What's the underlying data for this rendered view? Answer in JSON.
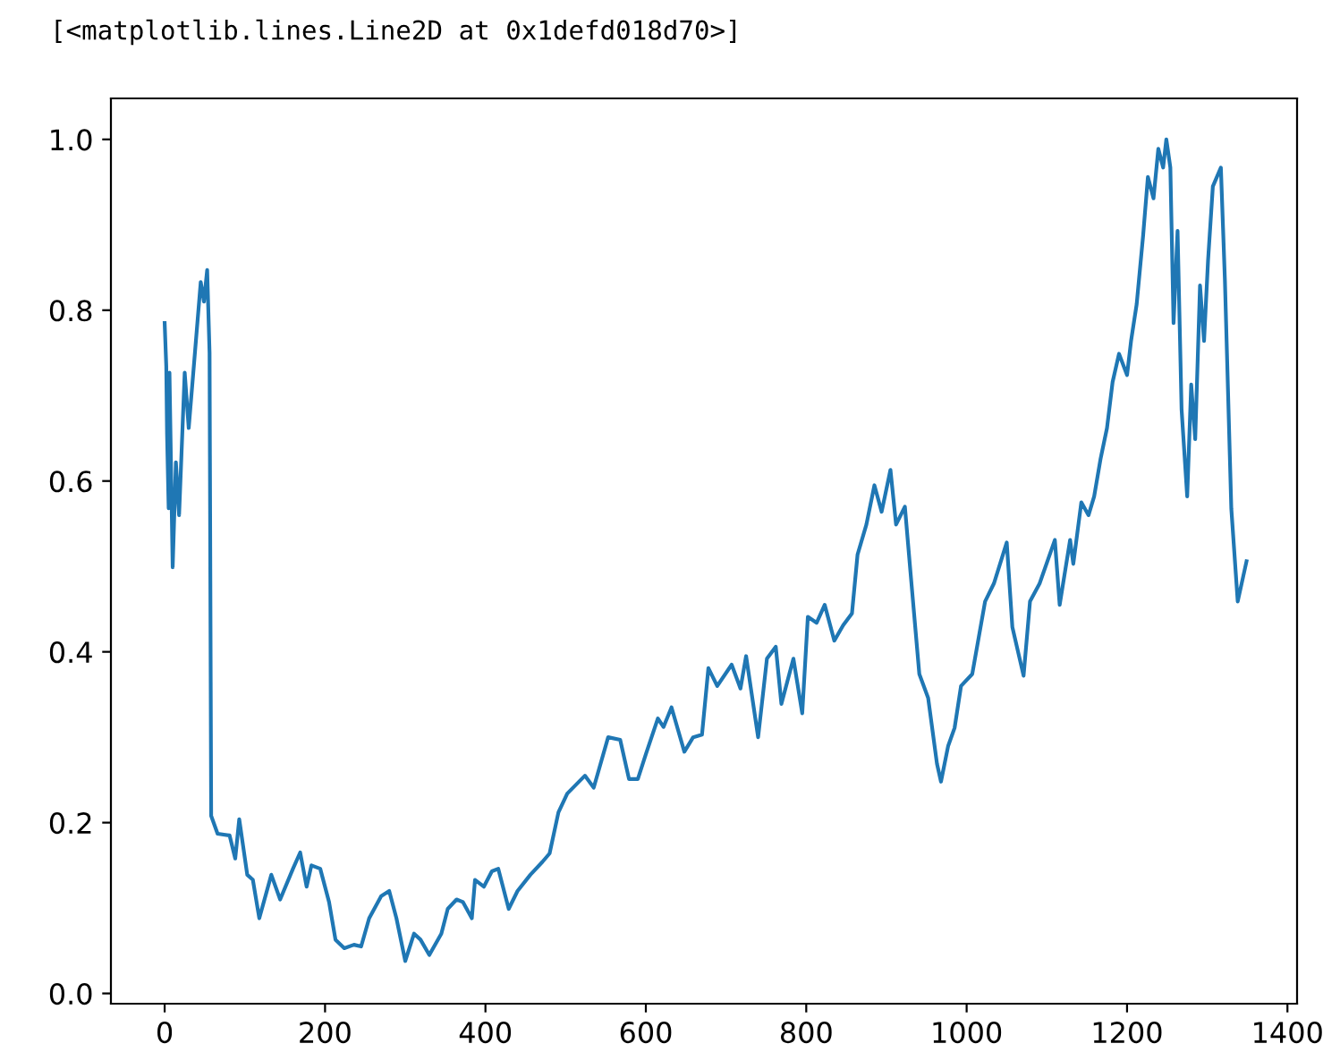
{
  "chart_data": {
    "type": "line",
    "annotations": [
      "[<matplotlib.lines.Line2D at 0x1defd018d70>]"
    ],
    "xlim": [
      -67,
      1412
    ],
    "ylim": [
      -0.012,
      1.048
    ],
    "xticks": [
      0,
      200,
      400,
      600,
      800,
      1000,
      1200,
      1400
    ],
    "yticks": [
      {
        "value": 0,
        "label": "0.0"
      },
      {
        "value": 0.2,
        "label": "0.2"
      },
      {
        "value": 0.4,
        "label": "0.4"
      },
      {
        "value": 0.6,
        "label": "0.6"
      },
      {
        "value": 0.8,
        "label": "0.8"
      },
      {
        "value": 1,
        "label": "1.0"
      }
    ],
    "grid": false,
    "marker": "none",
    "line_style": "solid",
    "series": [
      {
        "color": "#1f77b4",
        "x": [
          0,
          2,
          3,
          5,
          6,
          10,
          14,
          18,
          25,
          30,
          38,
          45,
          49,
          53,
          56,
          58,
          66,
          81,
          88,
          93,
          103,
          110,
          118,
          133,
          144,
          160,
          169,
          177,
          183,
          194,
          205,
          213,
          224,
          236,
          245,
          255,
          270,
          280,
          289,
          300,
          311,
          319,
          330,
          345,
          353,
          364,
          372,
          383,
          387,
          398,
          408,
          416,
          429,
          440,
          456,
          471,
          480,
          491,
          502,
          524,
          535,
          553,
          568,
          579,
          590,
          600,
          615,
          622,
          632,
          648,
          659,
          670,
          678,
          689,
          707,
          718,
          725,
          740,
          751,
          762,
          769,
          784,
          795,
          802,
          813,
          823,
          835,
          846,
          857,
          864,
          875,
          885,
          894,
          905,
          912,
          923,
          930,
          941,
          952,
          963,
          968,
          977,
          985,
          993,
          1007,
          1023,
          1034,
          1050,
          1057,
          1071,
          1079,
          1091,
          1110,
          1116,
          1129,
          1133,
          1143,
          1152,
          1159,
          1167,
          1175,
          1182,
          1190,
          1200,
          1205,
          1212,
          1220,
          1226,
          1233,
          1239,
          1245,
          1249,
          1254,
          1258,
          1263,
          1268,
          1275,
          1280,
          1285,
          1291,
          1296,
          1301,
          1307,
          1317,
          1322,
          1330,
          1338,
          1349
        ],
        "values": [
          0.785,
          0.735,
          0.655,
          0.568,
          0.727,
          0.499,
          0.622,
          0.56,
          0.727,
          0.662,
          0.753,
          0.833,
          0.81,
          0.847,
          0.75,
          0.208,
          0.187,
          0.185,
          0.158,
          0.204,
          0.139,
          0.133,
          0.088,
          0.139,
          0.11,
          0.146,
          0.165,
          0.125,
          0.15,
          0.146,
          0.107,
          0.063,
          0.053,
          0.057,
          0.055,
          0.088,
          0.114,
          0.12,
          0.088,
          0.038,
          0.07,
          0.063,
          0.045,
          0.07,
          0.099,
          0.11,
          0.107,
          0.088,
          0.133,
          0.125,
          0.143,
          0.146,
          0.099,
          0.12,
          0.139,
          0.154,
          0.164,
          0.212,
          0.234,
          0.255,
          0.241,
          0.3,
          0.297,
          0.251,
          0.251,
          0.28,
          0.322,
          0.312,
          0.335,
          0.283,
          0.3,
          0.303,
          0.381,
          0.36,
          0.385,
          0.357,
          0.395,
          0.3,
          0.392,
          0.406,
          0.339,
          0.392,
          0.328,
          0.441,
          0.434,
          0.455,
          0.413,
          0.431,
          0.445,
          0.514,
          0.549,
          0.595,
          0.564,
          0.613,
          0.549,
          0.57,
          0.493,
          0.374,
          0.346,
          0.269,
          0.248,
          0.29,
          0.311,
          0.36,
          0.374,
          0.459,
          0.48,
          0.528,
          0.429,
          0.372,
          0.459,
          0.48,
          0.531,
          0.455,
          0.531,
          0.503,
          0.575,
          0.56,
          0.582,
          0.626,
          0.662,
          0.716,
          0.749,
          0.724,
          0.764,
          0.807,
          0.887,
          0.956,
          0.931,
          0.989,
          0.967,
          1.0,
          0.967,
          0.785,
          0.893,
          0.684,
          0.582,
          0.713,
          0.649,
          0.829,
          0.764,
          0.858,
          0.945,
          0.967,
          0.836,
          0.568,
          0.459,
          0.506
        ]
      }
    ]
  }
}
